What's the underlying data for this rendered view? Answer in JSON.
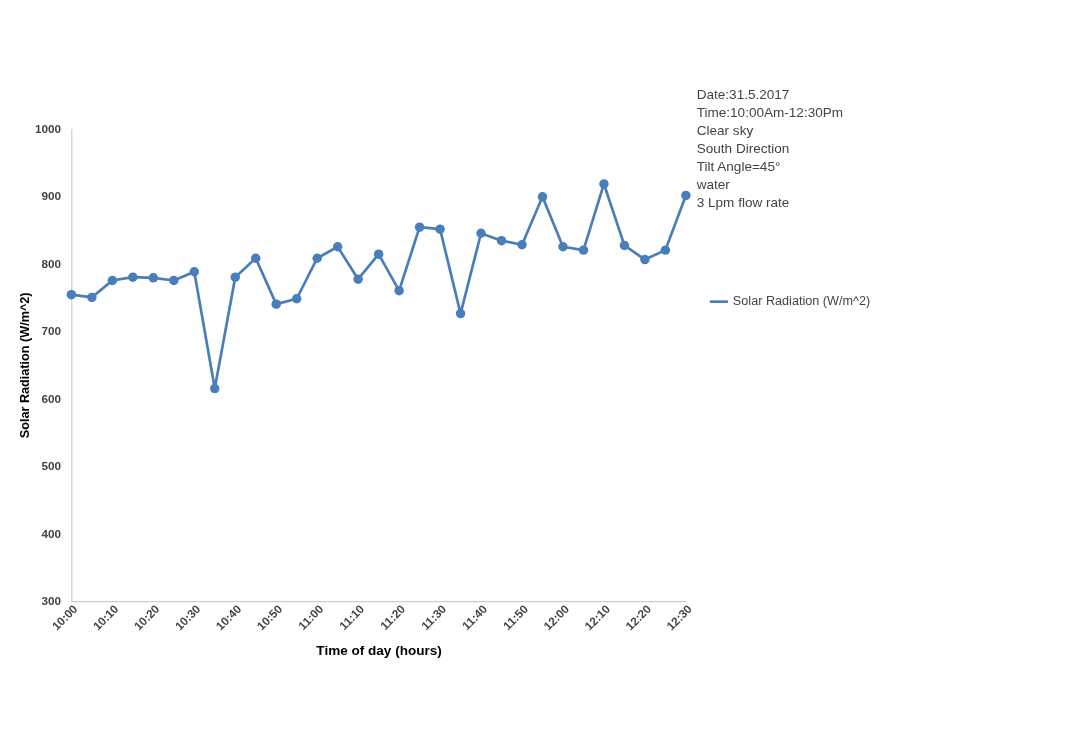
{
  "chart_data": {
    "type": "line",
    "xlabel": "Time of day (hours)",
    "ylabel": "Solar Radiation (W/m^2)",
    "categories": [
      "10:00",
      null,
      "10:10",
      null,
      "10:20",
      null,
      "10:30",
      null,
      "10:40",
      null,
      "10:50",
      null,
      "11:00",
      null,
      "11:10",
      null,
      "11:20",
      null,
      "11:30",
      null,
      "11:40",
      null,
      "11:50",
      null,
      "12:00",
      null,
      "12:10",
      null,
      "12:20",
      null,
      "12:30"
    ],
    "series": [
      {
        "name": "Solar Radiation (W/m^2)",
        "color": "#4a7ebb",
        "values": [
          754,
          750,
          775,
          780,
          779,
          775,
          788,
          615,
          780,
          808,
          740,
          748,
          808,
          825,
          777,
          814,
          760,
          854,
          851,
          726,
          845,
          834,
          828,
          899,
          825,
          820,
          918,
          827,
          806,
          820,
          901
        ]
      }
    ],
    "ylim": [
      300,
      1000
    ],
    "yticks": [
      300,
      400,
      500,
      600,
      700,
      800,
      900,
      {
        "value": 1000,
        "label": "1000"
      }
    ],
    "grid": false,
    "legend": "right",
    "marker": "circle",
    "line_style": "solid",
    "annotations": [
      "Date:31.5.2017",
      "Time:10:00Am-12:30Pm",
      "Clear sky",
      "South Direction",
      "Tilt Angle=45°",
      "water",
      "3 Lpm flow rate"
    ]
  }
}
